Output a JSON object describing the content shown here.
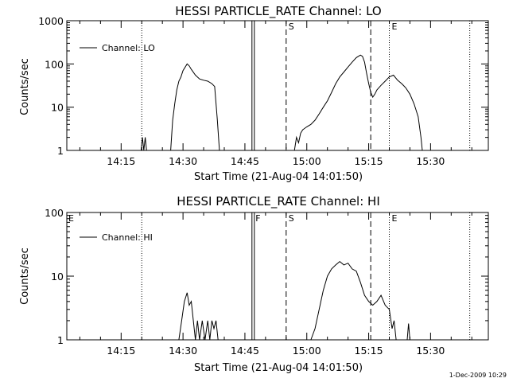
{
  "footer": {
    "timestamp": "1-Dec-2009 10:29"
  },
  "chart_data": [
    {
      "type": "line",
      "title": "HESSI PARTICLE_RATE Channel: LO",
      "xlabel": "Start Time (21-Aug-04 14:01:50)",
      "ylabel": "Counts/sec",
      "yscale": "log",
      "xlim": [
        "14:01:50",
        "15:44:00"
      ],
      "ylim": [
        1,
        1000
      ],
      "x_ticks": [
        "14:15",
        "14:30",
        "14:45",
        "15:00",
        "15:15",
        "15:30"
      ],
      "y_ticks": [
        "1",
        "10",
        "100",
        "1000"
      ],
      "legend": "Channel: LO",
      "legend_position": "top-left",
      "markers": [
        {
          "time": "14:20:00",
          "style": "dotted",
          "label": ""
        },
        {
          "time": "14:47:00",
          "style": "solid-double",
          "label": ""
        },
        {
          "time": "14:55:00",
          "style": "dashed",
          "label": "S"
        },
        {
          "time": "15:15:30",
          "style": "dashed",
          "label": ""
        },
        {
          "time": "15:20:00",
          "style": "dotted",
          "label": "E"
        },
        {
          "time": "15:39:30",
          "style": "dotted",
          "label": ""
        }
      ],
      "series": [
        {
          "name": "Channel: LO",
          "points": [
            [
              "14:19:50",
              1
            ],
            [
              "14:20:10",
              2
            ],
            [
              "14:20:30",
              1
            ],
            [
              "14:20:50",
              2
            ],
            [
              "14:21:10",
              1
            ],
            [
              "14:27:00",
              1
            ],
            [
              "14:27:30",
              5
            ],
            [
              "14:28:00",
              12
            ],
            [
              "14:28:30",
              25
            ],
            [
              "14:29:00",
              40
            ],
            [
              "14:29:30",
              50
            ],
            [
              "14:30:00",
              70
            ],
            [
              "14:31:00",
              100
            ],
            [
              "14:31:30",
              90
            ],
            [
              "14:32:00",
              75
            ],
            [
              "14:33:00",
              55
            ],
            [
              "14:34:00",
              45
            ],
            [
              "14:35:00",
              42
            ],
            [
              "14:36:00",
              40
            ],
            [
              "14:37:00",
              35
            ],
            [
              "14:37:40",
              30
            ],
            [
              "14:38:20",
              5
            ],
            [
              "14:38:50",
              1
            ],
            [
              "14:57:00",
              1
            ],
            [
              "14:57:30",
              2
            ],
            [
              "14:58:00",
              1.5
            ],
            [
              "14:58:30",
              2.5
            ],
            [
              "14:59:00",
              3
            ],
            [
              "15:00:00",
              3.5
            ],
            [
              "15:01:00",
              4
            ],
            [
              "15:02:00",
              5
            ],
            [
              "15:03:00",
              7
            ],
            [
              "15:04:00",
              10
            ],
            [
              "15:05:00",
              14
            ],
            [
              "15:06:00",
              22
            ],
            [
              "15:07:00",
              35
            ],
            [
              "15:08:00",
              50
            ],
            [
              "15:09:00",
              65
            ],
            [
              "15:10:00",
              85
            ],
            [
              "15:11:00",
              110
            ],
            [
              "15:12:00",
              140
            ],
            [
              "15:13:00",
              160
            ],
            [
              "15:13:30",
              150
            ],
            [
              "15:14:00",
              110
            ],
            [
              "15:14:30",
              60
            ],
            [
              "15:15:00",
              35
            ],
            [
              "15:15:30",
              22
            ],
            [
              "15:16:00",
              17
            ],
            [
              "15:16:30",
              20
            ],
            [
              "15:17:00",
              25
            ],
            [
              "15:18:00",
              32
            ],
            [
              "15:19:00",
              40
            ],
            [
              "15:20:00",
              50
            ],
            [
              "15:21:00",
              55
            ],
            [
              "15:22:00",
              42
            ],
            [
              "15:23:00",
              35
            ],
            [
              "15:24:00",
              28
            ],
            [
              "15:25:00",
              20
            ],
            [
              "15:26:00",
              12
            ],
            [
              "15:27:00",
              6
            ],
            [
              "15:27:40",
              2
            ],
            [
              "15:28:00",
              1
            ]
          ]
        }
      ]
    },
    {
      "type": "line",
      "title": "HESSI PARTICLE_RATE Channel: HI",
      "xlabel": "Start Time (21-Aug-04 14:01:50)",
      "ylabel": "Counts/sec",
      "yscale": "log",
      "xlim": [
        "14:01:50",
        "15:44:00"
      ],
      "ylim": [
        1,
        100
      ],
      "x_ticks": [
        "14:15",
        "14:30",
        "14:45",
        "15:00",
        "15:15",
        "15:30"
      ],
      "y_ticks": [
        "1",
        "10",
        "100"
      ],
      "legend": "Channel: HI",
      "legend_position": "top-left",
      "corner_labels": [
        "E"
      ],
      "markers": [
        {
          "time": "14:20:00",
          "style": "dotted",
          "label": ""
        },
        {
          "time": "14:47:00",
          "style": "solid-double",
          "label": "F"
        },
        {
          "time": "14:55:00",
          "style": "dashed",
          "label": "S"
        },
        {
          "time": "15:15:30",
          "style": "dashed",
          "label": ""
        },
        {
          "time": "15:20:00",
          "style": "dotted",
          "label": "E"
        },
        {
          "time": "15:39:30",
          "style": "dotted",
          "label": ""
        }
      ],
      "series": [
        {
          "name": "Channel: HI",
          "points": [
            [
              "14:29:00",
              1
            ],
            [
              "14:29:40",
              2
            ],
            [
              "14:30:20",
              4
            ],
            [
              "14:31:00",
              5.5
            ],
            [
              "14:31:30",
              3.5
            ],
            [
              "14:32:00",
              4
            ],
            [
              "14:32:30",
              2
            ],
            [
              "14:33:00",
              1
            ],
            [
              "14:33:30",
              2
            ],
            [
              "14:34:00",
              1
            ],
            [
              "14:34:40",
              2
            ],
            [
              "14:35:20",
              1
            ],
            [
              "14:36:00",
              2
            ],
            [
              "14:36:30",
              1
            ],
            [
              "14:37:00",
              2
            ],
            [
              "14:37:30",
              1.5
            ],
            [
              "14:38:00",
              2
            ],
            [
              "14:38:30",
              1
            ],
            [
              "15:01:00",
              1
            ],
            [
              "15:02:00",
              1.5
            ],
            [
              "15:03:00",
              3
            ],
            [
              "15:04:00",
              6
            ],
            [
              "15:05:00",
              10
            ],
            [
              "15:06:00",
              13
            ],
            [
              "15:07:00",
              15
            ],
            [
              "15:08:00",
              17
            ],
            [
              "15:09:00",
              15
            ],
            [
              "15:10:00",
              16
            ],
            [
              "15:11:00",
              13
            ],
            [
              "15:12:00",
              12
            ],
            [
              "15:13:00",
              8
            ],
            [
              "15:14:00",
              5
            ],
            [
              "15:15:00",
              4
            ],
            [
              "15:16:00",
              3.5
            ],
            [
              "15:17:00",
              4
            ],
            [
              "15:18:00",
              5
            ],
            [
              "15:19:00",
              3.5
            ],
            [
              "15:20:00",
              3
            ],
            [
              "15:20:40",
              1.5
            ],
            [
              "15:21:10",
              2
            ],
            [
              "15:21:40",
              1
            ],
            [
              "15:24:20",
              1
            ],
            [
              "15:24:40",
              1.8
            ],
            [
              "15:25:00",
              1
            ]
          ]
        }
      ]
    }
  ]
}
